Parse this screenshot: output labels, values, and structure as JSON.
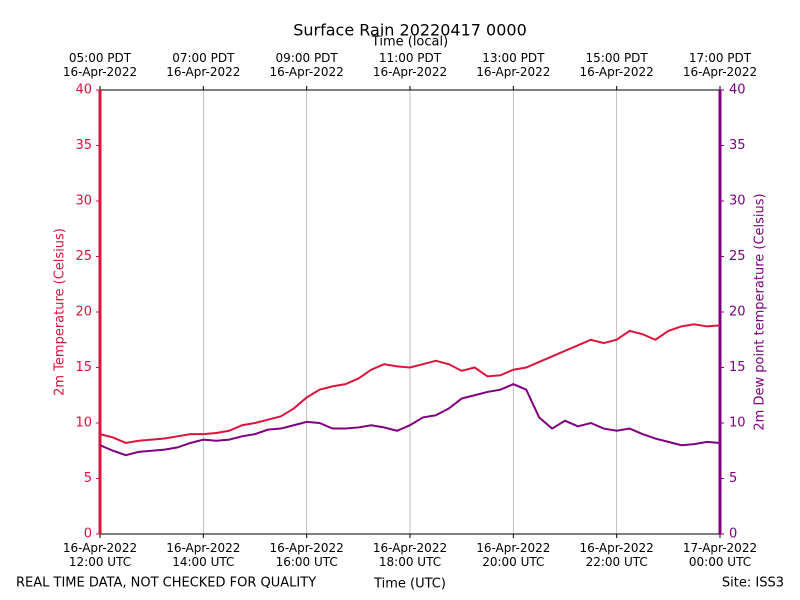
{
  "chart_data": {
    "type": "line",
    "title": "Surface Rain 20220417 0000",
    "xlabel": "Time (UTC)",
    "x2label": "Time (local)",
    "ylabel": "2m Temperature (Celsius)",
    "y2label": "2m Dew point temperature (Celsius)",
    "annotations": [
      "REAL TIME DATA, NOT CHECKED FOR QUALITY",
      "Site: ISS3"
    ],
    "grid": "x",
    "xlim": [
      "2022-04-16T12:00",
      "2022-04-17T00:00"
    ],
    "xticks": [
      {
        "value": "2022-04-16T12:00",
        "label": "16-Apr-2022\n12:00 UTC"
      },
      {
        "value": "2022-04-16T14:00",
        "label": "16-Apr-2022\n14:00 UTC"
      },
      {
        "value": "2022-04-16T16:00",
        "label": "16-Apr-2022\n16:00 UTC"
      },
      {
        "value": "2022-04-16T18:00",
        "label": "16-Apr-2022\n18:00 UTC"
      },
      {
        "value": "2022-04-16T20:00",
        "label": "16-Apr-2022\n20:00 UTC"
      },
      {
        "value": "2022-04-16T22:00",
        "label": "16-Apr-2022\n22:00 UTC"
      },
      {
        "value": "2022-04-17T00:00",
        "label": "17-Apr-2022\n00:00 UTC"
      }
    ],
    "x2ticks": [
      {
        "value": "2022-04-16T12:00",
        "label": "05:00 PDT\n16-Apr-2022"
      },
      {
        "value": "2022-04-16T14:00",
        "label": "07:00 PDT\n16-Apr-2022"
      },
      {
        "value": "2022-04-16T16:00",
        "label": "09:00 PDT\n16-Apr-2022"
      },
      {
        "value": "2022-04-16T18:00",
        "label": "11:00 PDT\n16-Apr-2022"
      },
      {
        "value": "2022-04-16T20:00",
        "label": "13:00 PDT\n16-Apr-2022"
      },
      {
        "value": "2022-04-16T22:00",
        "label": "15:00 PDT\n16-Apr-2022"
      },
      {
        "value": "2022-04-17T00:00",
        "label": "17:00 PDT\n16-Apr-2022"
      }
    ],
    "ylim": [
      0,
      40
    ],
    "yticks": [
      0,
      5,
      10,
      15,
      20,
      25,
      30,
      35,
      40
    ],
    "y2lim": [
      0,
      40
    ],
    "y2ticks": [
      0,
      5,
      10,
      15,
      20,
      25,
      30,
      35,
      40
    ],
    "ycolor": "#dc143c",
    "y2color": "#800080",
    "x": [
      "2022-04-16T12:00",
      "2022-04-16T12:15",
      "2022-04-16T12:30",
      "2022-04-16T12:45",
      "2022-04-16T13:00",
      "2022-04-16T13:15",
      "2022-04-16T13:30",
      "2022-04-16T13:45",
      "2022-04-16T14:00",
      "2022-04-16T14:15",
      "2022-04-16T14:30",
      "2022-04-16T14:45",
      "2022-04-16T15:00",
      "2022-04-16T15:15",
      "2022-04-16T15:30",
      "2022-04-16T15:45",
      "2022-04-16T16:00",
      "2022-04-16T16:15",
      "2022-04-16T16:30",
      "2022-04-16T16:45",
      "2022-04-16T17:00",
      "2022-04-16T17:15",
      "2022-04-16T17:30",
      "2022-04-16T17:45",
      "2022-04-16T18:00",
      "2022-04-16T18:15",
      "2022-04-16T18:30",
      "2022-04-16T18:45",
      "2022-04-16T19:00",
      "2022-04-16T19:15",
      "2022-04-16T19:30",
      "2022-04-16T19:45",
      "2022-04-16T20:00",
      "2022-04-16T20:15",
      "2022-04-16T20:30",
      "2022-04-16T20:45",
      "2022-04-16T21:00",
      "2022-04-16T21:15",
      "2022-04-16T21:30",
      "2022-04-16T21:45",
      "2022-04-16T22:00",
      "2022-04-16T22:15",
      "2022-04-16T22:30",
      "2022-04-16T22:45",
      "2022-04-16T23:00",
      "2022-04-16T23:15",
      "2022-04-16T23:30",
      "2022-04-16T23:45",
      "2022-04-17T00:00"
    ],
    "series": [
      {
        "color": "#dc143c",
        "axis": "y",
        "values": [
          9.0,
          8.7,
          8.2,
          8.4,
          8.5,
          8.6,
          8.8,
          9.0,
          9.0,
          9.1,
          9.3,
          9.8,
          10.0,
          10.3,
          10.6,
          11.3,
          12.3,
          13.0,
          13.3,
          13.5,
          14.0,
          14.8,
          15.3,
          15.1,
          15.0,
          15.3,
          15.6,
          15.3,
          14.7,
          15.0,
          14.2,
          14.3,
          14.8,
          15.0,
          15.5,
          16.0,
          16.5,
          17.0,
          17.5,
          17.2,
          17.5,
          18.3,
          18.0,
          17.5,
          18.3,
          18.7,
          18.9,
          18.7,
          18.8
        ]
      },
      {
        "color": "#800080",
        "axis": "y2",
        "values": [
          8.0,
          7.5,
          7.1,
          7.4,
          7.5,
          7.6,
          7.8,
          8.2,
          8.5,
          8.4,
          8.5,
          8.8,
          9.0,
          9.4,
          9.5,
          9.8,
          10.1,
          10.0,
          9.5,
          9.5,
          9.6,
          9.8,
          9.6,
          9.3,
          9.8,
          10.5,
          10.7,
          11.3,
          12.2,
          12.5,
          12.8,
          13.0,
          13.5,
          13.0,
          10.5,
          9.5,
          10.2,
          9.7,
          10.0,
          9.5,
          9.3,
          9.5,
          9.0,
          8.6,
          8.3,
          8.0,
          8.1,
          8.3,
          8.2
        ]
      }
    ]
  }
}
